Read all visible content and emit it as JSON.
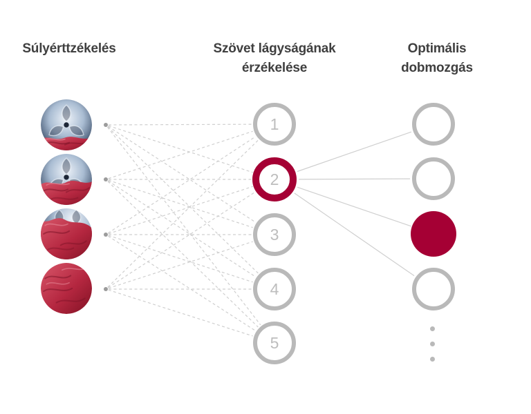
{
  "canvas": {
    "background": "#ffffff"
  },
  "colors": {
    "accent_red": "#a50034",
    "ring_gray": "#b9b9b9",
    "connector_gray": "#cfcfcf",
    "origin_dot_gray": "#9b9b9b",
    "heading_text": "#3f3f3f",
    "number_gray": "#bdbdbd"
  },
  "columns": {
    "weight": {
      "title": "Súlyérttzékelés",
      "photos": [
        {
          "name": "drum-photo-1",
          "fabric_fill": "low"
        },
        {
          "name": "drum-photo-2",
          "fabric_fill": "medium"
        },
        {
          "name": "drum-photo-3",
          "fabric_fill": "high"
        },
        {
          "name": "drum-photo-4",
          "fabric_fill": "full"
        }
      ]
    },
    "softness": {
      "title": "Szövet lágyságának\nérzékelése",
      "levels": [
        {
          "label": "1",
          "state": "default"
        },
        {
          "label": "2",
          "state": "selected"
        },
        {
          "label": "3",
          "state": "default"
        },
        {
          "label": "4",
          "state": "default"
        },
        {
          "label": "5",
          "state": "default"
        }
      ]
    },
    "drum_motion": {
      "title": "Optimális\ndobmozgás",
      "nodes": [
        {
          "state": "default"
        },
        {
          "state": "default"
        },
        {
          "state": "selected"
        },
        {
          "state": "default"
        }
      ],
      "ellipsis_dot_count": 3
    }
  }
}
